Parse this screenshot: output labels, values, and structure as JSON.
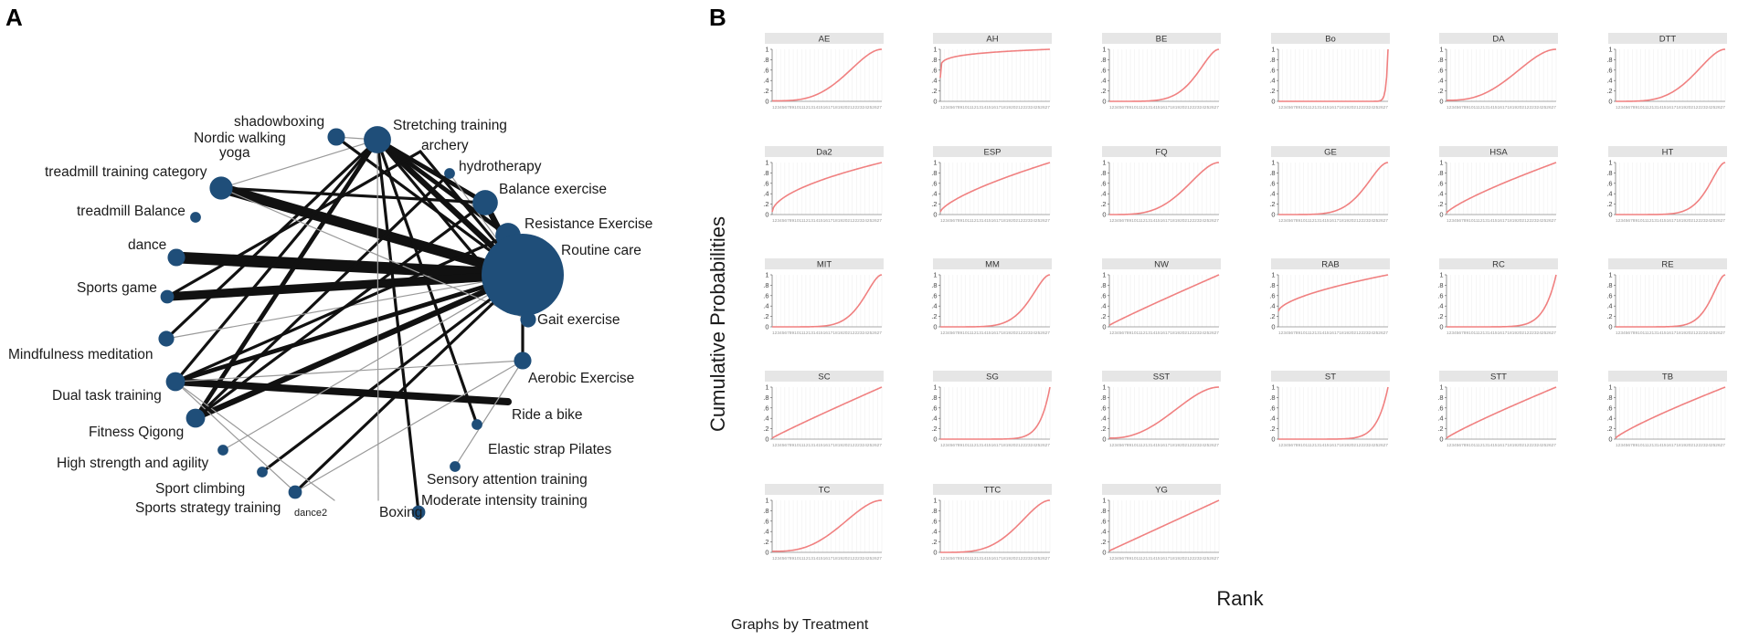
{
  "panels": {
    "a_letter": "A",
    "b_letter": "B"
  },
  "chart_data": [
    {
      "type": "network",
      "panel": "A",
      "center_node": "Routine care",
      "node_color": "#1f4e79",
      "nodes": [
        {
          "id": "shadowboxing",
          "label": "shadowboxing",
          "size": 2
        },
        {
          "id": "nordic",
          "label": "Nordic walking",
          "size": 0
        },
        {
          "id": "yoga",
          "label": "yoga",
          "size": 0
        },
        {
          "id": "stretch",
          "label": "Stretching training",
          "size": 6
        },
        {
          "id": "archery",
          "label": "archery",
          "size": 0
        },
        {
          "id": "hydro",
          "label": "hydrotherapy",
          "size": 0.5
        },
        {
          "id": "treadcat",
          "label": "treadmill training category",
          "size": 4
        },
        {
          "id": "treadbal",
          "label": "treadmill Balance",
          "size": 0.5
        },
        {
          "id": "balance",
          "label": "Balance exercise",
          "size": 5
        },
        {
          "id": "resist",
          "label": "Resistance Exercise",
          "size": 5
        },
        {
          "id": "routine",
          "label": "Routine care",
          "size": 30
        },
        {
          "id": "dance",
          "label": "dance",
          "size": 2
        },
        {
          "id": "sportsgame",
          "label": "Sports game",
          "size": 1
        },
        {
          "id": "gait",
          "label": "Gait exercise",
          "size": 1.5
        },
        {
          "id": "mindful",
          "label": "Mindfulness meditation",
          "size": 1.5
        },
        {
          "id": "aerobic",
          "label": "Aerobic Exercise",
          "size": 2
        },
        {
          "id": "dualtask",
          "label": "Dual task training",
          "size": 2.5
        },
        {
          "id": "bike",
          "label": "Ride a bike",
          "size": 0
        },
        {
          "id": "qigong",
          "label": "Fitness Qigong",
          "size": 2.5
        },
        {
          "id": "elastic",
          "label": "Elastic strap Pilates",
          "size": 0.5
        },
        {
          "id": "highstr",
          "label": "High strength and agility",
          "size": 0.5
        },
        {
          "id": "sensory",
          "label": "Sensory attention training",
          "size": 0.5
        },
        {
          "id": "climb",
          "label": "Sport climbing",
          "size": 0.5
        },
        {
          "id": "dance2",
          "label": "dance2",
          "size": 1
        },
        {
          "id": "strategy",
          "label": "Sports strategy training",
          "size": 0
        },
        {
          "id": "boxing",
          "label": "Boxing",
          "size": 0
        },
        {
          "id": "moderate",
          "label": "Moderate intensity training",
          "size": 1
        }
      ],
      "edges": [
        {
          "from": "dance",
          "to": "routine",
          "weight": 8
        },
        {
          "from": "treadcat",
          "to": "routine",
          "weight": 7
        },
        {
          "from": "sportsgame",
          "to": "routine",
          "weight": 6
        },
        {
          "from": "bike",
          "to": "dualtask",
          "weight": 5
        },
        {
          "from": "stretch",
          "to": "routine",
          "weight": 4
        },
        {
          "from": "balance",
          "to": "routine",
          "weight": 4
        },
        {
          "from": "resist",
          "to": "routine",
          "weight": 3
        },
        {
          "from": "qigong",
          "to": "routine",
          "weight": 4
        },
        {
          "from": "qigong",
          "to": "stretch",
          "weight": 3
        },
        {
          "from": "dualtask",
          "to": "routine",
          "weight": 3
        },
        {
          "from": "stretch",
          "to": "balance",
          "weight": 3
        },
        {
          "from": "stretch",
          "to": "resist",
          "weight": 3
        },
        {
          "from": "stretch",
          "to": "mindful",
          "weight": 2
        },
        {
          "from": "stretch",
          "to": "dualtask",
          "weight": 2
        },
        {
          "from": "stretch",
          "to": "gait",
          "weight": 2
        },
        {
          "from": "stretch",
          "to": "moderate",
          "weight": 2
        },
        {
          "from": "stretch",
          "to": "elastic",
          "weight": 2
        },
        {
          "from": "stretch",
          "to": "treadcat",
          "weight": 1
        },
        {
          "from": "shadowboxing",
          "to": "routine",
          "weight": 2
        },
        {
          "from": "shadowboxing",
          "to": "stretch",
          "weight": 1
        },
        {
          "from": "archery",
          "to": "sportsgame",
          "weight": 2
        },
        {
          "from": "archery",
          "to": "routine",
          "weight": 2
        },
        {
          "from": "hydro",
          "to": "qigong",
          "weight": 2
        },
        {
          "from": "hydro",
          "to": "routine",
          "weight": 1
        },
        {
          "from": "treadcat",
          "to": "gait",
          "weight": 1
        },
        {
          "from": "treadcat",
          "to": "balance",
          "weight": 2
        },
        {
          "from": "routine",
          "to": "aerobic",
          "weight": 2
        },
        {
          "from": "routine",
          "to": "climb",
          "weight": 2
        },
        {
          "from": "routine",
          "to": "highstr",
          "weight": 1
        },
        {
          "from": "routine",
          "to": "dance2",
          "weight": 2
        },
        {
          "from": "routine",
          "to": "mindful",
          "weight": 1
        },
        {
          "from": "dualtask",
          "to": "resist",
          "weight": 2
        },
        {
          "from": "dualtask",
          "to": "aerobic",
          "weight": 1
        },
        {
          "from": "dualtask",
          "to": "dance2",
          "weight": 1
        },
        {
          "from": "dualtask",
          "to": "strategy",
          "weight": 1
        },
        {
          "from": "qigong",
          "to": "balance",
          "weight": 2
        },
        {
          "from": "aerobic",
          "to": "sensory",
          "weight": 1
        },
        {
          "from": "aerobic",
          "to": "dance2",
          "weight": 1
        },
        {
          "from": "boxing",
          "to": "stretch",
          "weight": 1
        }
      ]
    },
    {
      "type": "line",
      "panel": "B",
      "subtype": "faceted cumulative ranking curves (SUCRA)",
      "ylabel": "Cumulative Probabilities",
      "xlabel": "Rank",
      "note": "Graphs by Treatment",
      "ylim": [
        0,
        1
      ],
      "yticks": [
        "0",
        ".2",
        ".4",
        ".6",
        ".8",
        "1"
      ],
      "xticks": [
        "1",
        "2",
        "3",
        "4",
        "5",
        "6",
        "7",
        "8",
        "9",
        "10",
        "11",
        "12",
        "13",
        "14",
        "15",
        "16",
        "17",
        "18",
        "19",
        "20",
        "21",
        "22",
        "23",
        "24",
        "25",
        "26",
        "27"
      ],
      "line_color": "#f08080",
      "facets": [
        {
          "name": "AE",
          "start": 0.01,
          "shape": 2.2
        },
        {
          "name": "AH",
          "start": 0.45,
          "shape": 0.15
        },
        {
          "name": "BE",
          "start": 0.0,
          "shape": 3.8
        },
        {
          "name": "Bo",
          "start": 0.0,
          "shape": 60
        },
        {
          "name": "DA",
          "start": 0.02,
          "shape": 1.8
        },
        {
          "name": "DTT",
          "start": 0.0,
          "shape": 2.6
        },
        {
          "name": "Da2",
          "start": 0.05,
          "shape": 0.55
        },
        {
          "name": "ESP",
          "start": 0.05,
          "shape": 0.7
        },
        {
          "name": "FQ",
          "start": 0.0,
          "shape": 2.4
        },
        {
          "name": "GE",
          "start": 0.0,
          "shape": 3.6
        },
        {
          "name": "HSA",
          "start": 0.03,
          "shape": 0.8
        },
        {
          "name": "HT",
          "start": 0.0,
          "shape": 5
        },
        {
          "name": "MIT",
          "start": 0.0,
          "shape": 4.5
        },
        {
          "name": "MM",
          "start": 0.0,
          "shape": 4.2
        },
        {
          "name": "NW",
          "start": 0.03,
          "shape": 0.95
        },
        {
          "name": "RAB",
          "start": 0.3,
          "shape": 0.6
        },
        {
          "name": "RC",
          "start": 0.0,
          "shape": 9
        },
        {
          "name": "RE",
          "start": 0.0,
          "shape": 6
        },
        {
          "name": "SC",
          "start": 0.02,
          "shape": 0.95
        },
        {
          "name": "SG",
          "start": 0.0,
          "shape": 11
        },
        {
          "name": "SST",
          "start": 0.02,
          "shape": 1.6
        },
        {
          "name": "ST",
          "start": 0.0,
          "shape": 10
        },
        {
          "name": "STT",
          "start": 0.02,
          "shape": 0.9
        },
        {
          "name": "TB",
          "start": 0.02,
          "shape": 0.85
        },
        {
          "name": "TC",
          "start": 0.02,
          "shape": 1.9
        },
        {
          "name": "TTC",
          "start": 0.0,
          "shape": 2.5
        },
        {
          "name": "YG",
          "start": 0.03,
          "shape": 1.0
        }
      ]
    }
  ]
}
